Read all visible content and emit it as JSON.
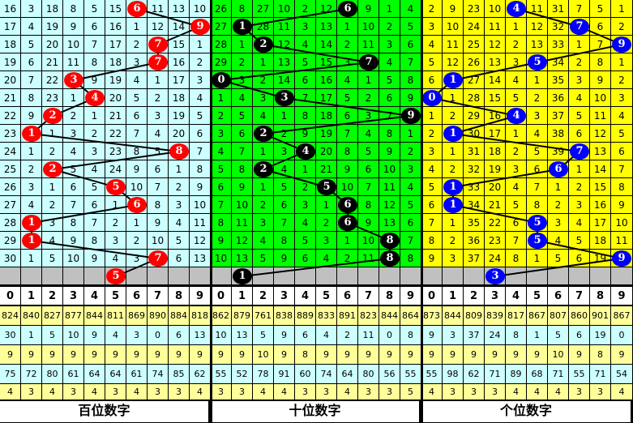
{
  "chart_data": {
    "type": "table",
    "columns": [
      "0",
      "1",
      "2",
      "3",
      "4",
      "5",
      "6",
      "7",
      "8",
      "9"
    ],
    "panels": [
      {
        "name": "百位数字",
        "ball_color": "#ff0000",
        "bg_color": "#ccffff",
        "rows": [
          [
            16,
            3,
            18,
            8,
            5,
            15,
            6,
            11,
            13,
            10
          ],
          [
            17,
            4,
            19,
            9,
            6,
            16,
            1,
            12,
            14,
            9
          ],
          [
            18,
            5,
            20,
            10,
            7,
            17,
            2,
            7,
            15,
            1
          ],
          [
            19,
            6,
            21,
            11,
            8,
            18,
            3,
            7,
            16,
            2
          ],
          [
            20,
            7,
            22,
            3,
            9,
            19,
            4,
            1,
            17,
            3
          ],
          [
            21,
            8,
            23,
            1,
            4,
            20,
            5,
            2,
            18,
            4
          ],
          [
            22,
            9,
            2,
            2,
            1,
            21,
            6,
            3,
            19,
            5
          ],
          [
            23,
            1,
            1,
            3,
            2,
            22,
            7,
            4,
            20,
            6
          ],
          [
            24,
            1,
            2,
            4,
            3,
            23,
            8,
            5,
            8,
            7
          ],
          [
            25,
            2,
            2,
            5,
            4,
            24,
            9,
            6,
            1,
            8
          ],
          [
            26,
            3,
            1,
            6,
            5,
            5,
            10,
            7,
            2,
            9
          ],
          [
            27,
            4,
            2,
            7,
            6,
            1,
            6,
            8,
            3,
            10
          ],
          [
            28,
            1,
            3,
            8,
            7,
            2,
            1,
            9,
            4,
            11
          ],
          [
            29,
            1,
            4,
            9,
            8,
            3,
            2,
            10,
            5,
            12
          ],
          [
            30,
            1,
            5,
            10,
            9,
            4,
            3,
            7,
            6,
            13
          ]
        ],
        "hits": [
          6,
          9,
          7,
          7,
          3,
          4,
          2,
          1,
          8,
          2,
          5,
          6,
          1,
          1,
          7
        ],
        "next": 5,
        "stats": [
          [
            824,
            840,
            827,
            877,
            844,
            811,
            869,
            890,
            884,
            818
          ],
          [
            30,
            1,
            5,
            10,
            9,
            4,
            3,
            0,
            6,
            13
          ],
          [
            9,
            9,
            9,
            9,
            9,
            9,
            9,
            9,
            9,
            9
          ],
          [
            75,
            72,
            80,
            61,
            64,
            64,
            61,
            74,
            85,
            62
          ],
          [
            4,
            3,
            4,
            3,
            4,
            3,
            4,
            3,
            3,
            4
          ]
        ]
      },
      {
        "name": "十位数字",
        "ball_color": "#000000",
        "bg_color": "#00ff00",
        "rows": [
          [
            26,
            8,
            27,
            10,
            2,
            12,
            6,
            9,
            1,
            4
          ],
          [
            27,
            1,
            28,
            11,
            3,
            13,
            1,
            10,
            2,
            5
          ],
          [
            28,
            1,
            2,
            12,
            4,
            14,
            2,
            11,
            3,
            6
          ],
          [
            29,
            2,
            1,
            13,
            5,
            15,
            3,
            7,
            4,
            7
          ],
          [
            0,
            3,
            2,
            14,
            6,
            16,
            4,
            1,
            5,
            8
          ],
          [
            1,
            4,
            3,
            3,
            7,
            17,
            5,
            2,
            6,
            9
          ],
          [
            2,
            5,
            4,
            1,
            8,
            18,
            6,
            3,
            7,
            9
          ],
          [
            3,
            6,
            2,
            2,
            9,
            19,
            7,
            4,
            8,
            1
          ],
          [
            4,
            7,
            1,
            3,
            4,
            20,
            8,
            5,
            9,
            2
          ],
          [
            5,
            8,
            2,
            4,
            1,
            21,
            9,
            6,
            10,
            3
          ],
          [
            6,
            9,
            1,
            5,
            2,
            5,
            10,
            7,
            11,
            4
          ],
          [
            7,
            10,
            2,
            6,
            3,
            1,
            6,
            8,
            12,
            5
          ],
          [
            8,
            11,
            3,
            7,
            4,
            2,
            6,
            9,
            13,
            6
          ],
          [
            9,
            12,
            4,
            8,
            5,
            3,
            1,
            10,
            8,
            7
          ],
          [
            10,
            13,
            5,
            9,
            6,
            4,
            2,
            11,
            8,
            8
          ]
        ],
        "hits": [
          6,
          1,
          2,
          7,
          0,
          3,
          9,
          2,
          4,
          2,
          5,
          6,
          6,
          8,
          8
        ],
        "next": 1,
        "stats": [
          [
            862,
            879,
            761,
            838,
            889,
            833,
            891,
            823,
            844,
            864
          ],
          [
            10,
            13,
            5,
            9,
            6,
            4,
            2,
            11,
            0,
            8
          ],
          [
            9,
            9,
            10,
            9,
            8,
            9,
            9,
            9,
            9,
            9
          ],
          [
            55,
            52,
            78,
            91,
            60,
            74,
            64,
            80,
            56,
            55
          ],
          [
            3,
            3,
            4,
            4,
            3,
            3,
            4,
            3,
            3,
            5
          ]
        ]
      },
      {
        "name": "个位数字",
        "ball_color": "#0000ff",
        "bg_color": "#ffff00",
        "rows": [
          [
            2,
            9,
            23,
            10,
            4,
            11,
            31,
            7,
            5,
            1
          ],
          [
            3,
            10,
            24,
            11,
            1,
            12,
            32,
            7,
            6,
            2
          ],
          [
            4,
            11,
            25,
            12,
            2,
            13,
            33,
            1,
            7,
            9
          ],
          [
            5,
            12,
            26,
            13,
            3,
            5,
            34,
            2,
            8,
            1
          ],
          [
            6,
            1,
            27,
            14,
            4,
            1,
            35,
            3,
            9,
            2
          ],
          [
            0,
            1,
            28,
            15,
            5,
            2,
            36,
            4,
            10,
            3
          ],
          [
            1,
            2,
            29,
            16,
            4,
            3,
            37,
            5,
            11,
            4
          ],
          [
            2,
            1,
            30,
            17,
            1,
            4,
            38,
            6,
            12,
            5
          ],
          [
            3,
            1,
            31,
            18,
            2,
            5,
            39,
            7,
            13,
            6
          ],
          [
            4,
            2,
            32,
            19,
            3,
            6,
            6,
            1,
            14,
            7
          ],
          [
            5,
            1,
            33,
            20,
            4,
            7,
            1,
            2,
            15,
            8
          ],
          [
            6,
            1,
            34,
            21,
            5,
            8,
            2,
            3,
            16,
            9
          ],
          [
            7,
            1,
            35,
            22,
            6,
            5,
            3,
            4,
            17,
            10
          ],
          [
            8,
            2,
            36,
            23,
            7,
            5,
            4,
            5,
            18,
            11
          ],
          [
            9,
            3,
            37,
            24,
            8,
            1,
            5,
            6,
            19,
            9
          ]
        ],
        "hits": [
          4,
          7,
          9,
          5,
          1,
          0,
          4,
          1,
          7,
          6,
          1,
          1,
          5,
          5,
          9
        ],
        "next": 3,
        "stats": [
          [
            873,
            844,
            809,
            839,
            817,
            867,
            807,
            860,
            901,
            867
          ],
          [
            9,
            3,
            37,
            24,
            8,
            1,
            5,
            6,
            19,
            0
          ],
          [
            9,
            9,
            9,
            9,
            9,
            9,
            10,
            9,
            8,
            9
          ],
          [
            55,
            98,
            62,
            71,
            89,
            68,
            71,
            55,
            71,
            54
          ],
          [
            4,
            3,
            3,
            3,
            4,
            4,
            4,
            3,
            3,
            4
          ]
        ]
      }
    ],
    "colors": {
      "grey_row": "#c0c0c0",
      "stat_yellow": "#ffff99",
      "stat_cyan": "#ccffff",
      "line": "#000000"
    }
  }
}
